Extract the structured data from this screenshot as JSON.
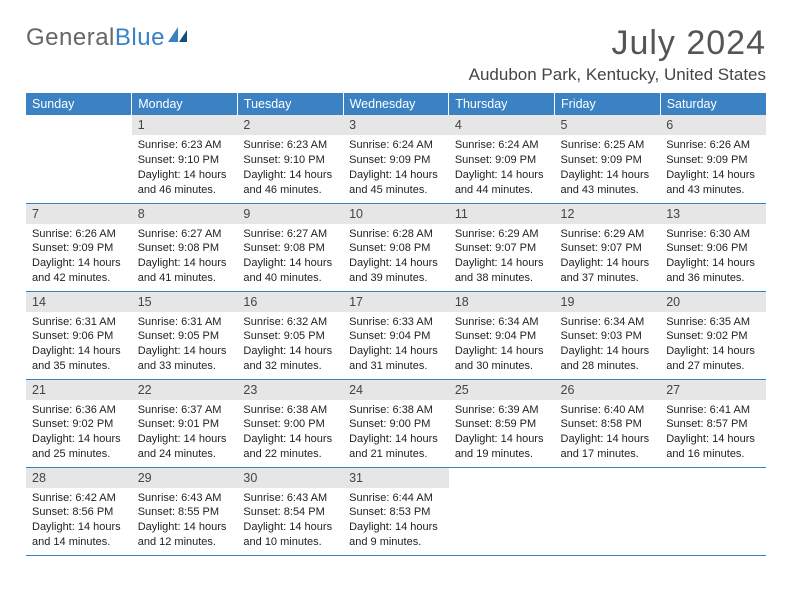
{
  "logo": {
    "part1": "General",
    "part2": "Blue"
  },
  "header": {
    "month": "July 2024",
    "location": "Audubon Park, Kentucky, United States"
  },
  "style": {
    "header_bg": "#3b82c4",
    "header_text": "#ffffff",
    "daynum_bg": "#e6e6e6",
    "border_color": "#3b82c4",
    "body_bg": "#ffffff",
    "text_color": "#222222",
    "month_color": "#555555",
    "location_color": "#444444",
    "logo_gray": "#666666",
    "logo_blue": "#3b82c4",
    "month_fontsize": 34,
    "location_fontsize": 17,
    "cell_fontsize": 11
  },
  "dow": [
    "Sunday",
    "Monday",
    "Tuesday",
    "Wednesday",
    "Thursday",
    "Friday",
    "Saturday"
  ],
  "weeks": [
    [
      {
        "n": "",
        "lines": []
      },
      {
        "n": "1",
        "lines": [
          "Sunrise: 6:23 AM",
          "Sunset: 9:10 PM",
          "Daylight: 14 hours",
          "and 46 minutes."
        ]
      },
      {
        "n": "2",
        "lines": [
          "Sunrise: 6:23 AM",
          "Sunset: 9:10 PM",
          "Daylight: 14 hours",
          "and 46 minutes."
        ]
      },
      {
        "n": "3",
        "lines": [
          "Sunrise: 6:24 AM",
          "Sunset: 9:09 PM",
          "Daylight: 14 hours",
          "and 45 minutes."
        ]
      },
      {
        "n": "4",
        "lines": [
          "Sunrise: 6:24 AM",
          "Sunset: 9:09 PM",
          "Daylight: 14 hours",
          "and 44 minutes."
        ]
      },
      {
        "n": "5",
        "lines": [
          "Sunrise: 6:25 AM",
          "Sunset: 9:09 PM",
          "Daylight: 14 hours",
          "and 43 minutes."
        ]
      },
      {
        "n": "6",
        "lines": [
          "Sunrise: 6:26 AM",
          "Sunset: 9:09 PM",
          "Daylight: 14 hours",
          "and 43 minutes."
        ]
      }
    ],
    [
      {
        "n": "7",
        "lines": [
          "Sunrise: 6:26 AM",
          "Sunset: 9:09 PM",
          "Daylight: 14 hours",
          "and 42 minutes."
        ]
      },
      {
        "n": "8",
        "lines": [
          "Sunrise: 6:27 AM",
          "Sunset: 9:08 PM",
          "Daylight: 14 hours",
          "and 41 minutes."
        ]
      },
      {
        "n": "9",
        "lines": [
          "Sunrise: 6:27 AM",
          "Sunset: 9:08 PM",
          "Daylight: 14 hours",
          "and 40 minutes."
        ]
      },
      {
        "n": "10",
        "lines": [
          "Sunrise: 6:28 AM",
          "Sunset: 9:08 PM",
          "Daylight: 14 hours",
          "and 39 minutes."
        ]
      },
      {
        "n": "11",
        "lines": [
          "Sunrise: 6:29 AM",
          "Sunset: 9:07 PM",
          "Daylight: 14 hours",
          "and 38 minutes."
        ]
      },
      {
        "n": "12",
        "lines": [
          "Sunrise: 6:29 AM",
          "Sunset: 9:07 PM",
          "Daylight: 14 hours",
          "and 37 minutes."
        ]
      },
      {
        "n": "13",
        "lines": [
          "Sunrise: 6:30 AM",
          "Sunset: 9:06 PM",
          "Daylight: 14 hours",
          "and 36 minutes."
        ]
      }
    ],
    [
      {
        "n": "14",
        "lines": [
          "Sunrise: 6:31 AM",
          "Sunset: 9:06 PM",
          "Daylight: 14 hours",
          "and 35 minutes."
        ]
      },
      {
        "n": "15",
        "lines": [
          "Sunrise: 6:31 AM",
          "Sunset: 9:05 PM",
          "Daylight: 14 hours",
          "and 33 minutes."
        ]
      },
      {
        "n": "16",
        "lines": [
          "Sunrise: 6:32 AM",
          "Sunset: 9:05 PM",
          "Daylight: 14 hours",
          "and 32 minutes."
        ]
      },
      {
        "n": "17",
        "lines": [
          "Sunrise: 6:33 AM",
          "Sunset: 9:04 PM",
          "Daylight: 14 hours",
          "and 31 minutes."
        ]
      },
      {
        "n": "18",
        "lines": [
          "Sunrise: 6:34 AM",
          "Sunset: 9:04 PM",
          "Daylight: 14 hours",
          "and 30 minutes."
        ]
      },
      {
        "n": "19",
        "lines": [
          "Sunrise: 6:34 AM",
          "Sunset: 9:03 PM",
          "Daylight: 14 hours",
          "and 28 minutes."
        ]
      },
      {
        "n": "20",
        "lines": [
          "Sunrise: 6:35 AM",
          "Sunset: 9:02 PM",
          "Daylight: 14 hours",
          "and 27 minutes."
        ]
      }
    ],
    [
      {
        "n": "21",
        "lines": [
          "Sunrise: 6:36 AM",
          "Sunset: 9:02 PM",
          "Daylight: 14 hours",
          "and 25 minutes."
        ]
      },
      {
        "n": "22",
        "lines": [
          "Sunrise: 6:37 AM",
          "Sunset: 9:01 PM",
          "Daylight: 14 hours",
          "and 24 minutes."
        ]
      },
      {
        "n": "23",
        "lines": [
          "Sunrise: 6:38 AM",
          "Sunset: 9:00 PM",
          "Daylight: 14 hours",
          "and 22 minutes."
        ]
      },
      {
        "n": "24",
        "lines": [
          "Sunrise: 6:38 AM",
          "Sunset: 9:00 PM",
          "Daylight: 14 hours",
          "and 21 minutes."
        ]
      },
      {
        "n": "25",
        "lines": [
          "Sunrise: 6:39 AM",
          "Sunset: 8:59 PM",
          "Daylight: 14 hours",
          "and 19 minutes."
        ]
      },
      {
        "n": "26",
        "lines": [
          "Sunrise: 6:40 AM",
          "Sunset: 8:58 PM",
          "Daylight: 14 hours",
          "and 17 minutes."
        ]
      },
      {
        "n": "27",
        "lines": [
          "Sunrise: 6:41 AM",
          "Sunset: 8:57 PM",
          "Daylight: 14 hours",
          "and 16 minutes."
        ]
      }
    ],
    [
      {
        "n": "28",
        "lines": [
          "Sunrise: 6:42 AM",
          "Sunset: 8:56 PM",
          "Daylight: 14 hours",
          "and 14 minutes."
        ]
      },
      {
        "n": "29",
        "lines": [
          "Sunrise: 6:43 AM",
          "Sunset: 8:55 PM",
          "Daylight: 14 hours",
          "and 12 minutes."
        ]
      },
      {
        "n": "30",
        "lines": [
          "Sunrise: 6:43 AM",
          "Sunset: 8:54 PM",
          "Daylight: 14 hours",
          "and 10 minutes."
        ]
      },
      {
        "n": "31",
        "lines": [
          "Sunrise: 6:44 AM",
          "Sunset: 8:53 PM",
          "Daylight: 14 hours",
          "and 9 minutes."
        ]
      },
      {
        "n": "",
        "lines": []
      },
      {
        "n": "",
        "lines": []
      },
      {
        "n": "",
        "lines": []
      }
    ]
  ]
}
